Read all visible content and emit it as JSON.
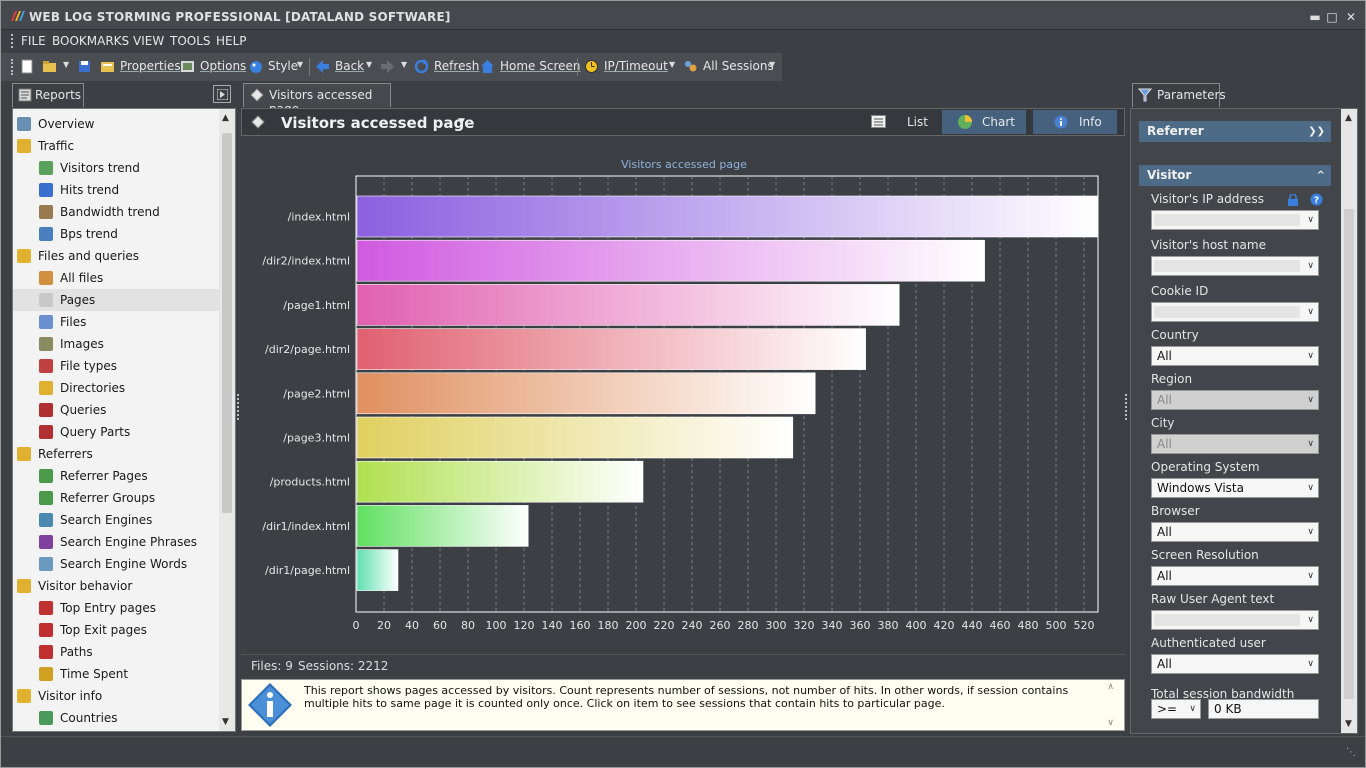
{
  "window": {
    "title": "WEB LOG STORMING PROFESSIONAL [DATALAND SOFTWARE]"
  },
  "menu": [
    "FILE",
    "BOOKMARKS",
    "VIEW",
    "TOOLS",
    "HELP"
  ],
  "toolbar": {
    "properties": "Properties",
    "options": "Options",
    "style": "Style",
    "back": "Back",
    "refresh": "Refresh",
    "home": "Home Screen",
    "ip_timeout": "IP/Timeout",
    "sessions": "All Sessions"
  },
  "left": {
    "tab": "Reports",
    "items": [
      {
        "label": "Overview",
        "level": 0,
        "icon": "overview-icon",
        "color": "#6a8fb5"
      },
      {
        "label": "Traffic",
        "level": 0,
        "icon": "folder-icon",
        "color": "#e0b030"
      },
      {
        "label": "Visitors trend",
        "level": 1,
        "icon": "visitors-icon",
        "color": "#5aa05a"
      },
      {
        "label": "Hits trend",
        "level": 1,
        "icon": "hits-icon",
        "color": "#3a6fd0"
      },
      {
        "label": "Bandwidth trend",
        "level": 1,
        "icon": "bandwidth-icon",
        "color": "#9a7a50"
      },
      {
        "label": "Bps trend",
        "level": 1,
        "icon": "bps-icon",
        "color": "#4a80c0"
      },
      {
        "label": "Files and queries",
        "level": 0,
        "icon": "folder-icon",
        "color": "#e0b030"
      },
      {
        "label": "All files",
        "level": 1,
        "icon": "all-files-icon",
        "color": "#d09040"
      },
      {
        "label": "Pages",
        "level": 1,
        "icon": "pages-icon",
        "color": "#c8c8c8",
        "selected": true
      },
      {
        "label": "Files",
        "level": 1,
        "icon": "files-icon",
        "color": "#6a90d0"
      },
      {
        "label": "Images",
        "level": 1,
        "icon": "images-icon",
        "color": "#8a8a60"
      },
      {
        "label": "File types",
        "level": 1,
        "icon": "file-types-icon",
        "color": "#c04040"
      },
      {
        "label": "Directories",
        "level": 1,
        "icon": "directories-icon",
        "color": "#e0b030"
      },
      {
        "label": "Queries",
        "level": 1,
        "icon": "queries-icon",
        "color": "#b03030"
      },
      {
        "label": "Query Parts",
        "level": 1,
        "icon": "query-parts-icon",
        "color": "#b03030"
      },
      {
        "label": "Referrers",
        "level": 0,
        "icon": "folder-icon",
        "color": "#e0b030"
      },
      {
        "label": "Referrer Pages",
        "level": 1,
        "icon": "referrer-pages-icon",
        "color": "#4a9a4a"
      },
      {
        "label": "Referrer Groups",
        "level": 1,
        "icon": "referrer-groups-icon",
        "color": "#4a9a4a"
      },
      {
        "label": "Search Engines",
        "level": 1,
        "icon": "search-engines-icon",
        "color": "#4a8ab0"
      },
      {
        "label": "Search Engine Phrases",
        "level": 1,
        "icon": "search-phrases-icon",
        "color": "#8040a0"
      },
      {
        "label": "Search Engine Words",
        "level": 1,
        "icon": "search-words-icon",
        "color": "#6a9ac0"
      },
      {
        "label": "Visitor behavior",
        "level": 0,
        "icon": "folder-icon",
        "color": "#e0b030"
      },
      {
        "label": "Top Entry pages",
        "level": 1,
        "icon": "entry-pages-icon",
        "color": "#c03030"
      },
      {
        "label": "Top Exit pages",
        "level": 1,
        "icon": "exit-pages-icon",
        "color": "#c03030"
      },
      {
        "label": "Paths",
        "level": 1,
        "icon": "paths-icon",
        "color": "#c03030"
      },
      {
        "label": "Time Spent",
        "level": 1,
        "icon": "clock-icon",
        "color": "#d0a020"
      },
      {
        "label": "Visitor info",
        "level": 0,
        "icon": "folder-icon",
        "color": "#e0b030"
      },
      {
        "label": "Countries",
        "level": 1,
        "icon": "globe-icon",
        "color": "#4a9a5a"
      }
    ]
  },
  "center": {
    "tab": "Visitors accessed page",
    "report_title": "Visitors accessed page",
    "views": {
      "list": "List",
      "chart": "Chart",
      "info": "Info"
    },
    "status_files": "Files: 9",
    "status_sessions": "Sessions: 2212",
    "info_text": "This report shows pages accessed by visitors. Count represents number of sessions, not number of hits. In other words, if session contains multiple hits to same page it is counted only once. Click on item to see sessions that contain hits to particular page."
  },
  "chart_data": {
    "type": "bar",
    "orientation": "horizontal",
    "title": "Visitors accessed page",
    "categories": [
      "/index.html",
      "/dir2/index.html",
      "/page1.html",
      "/dir2/page.html",
      "/page2.html",
      "/page3.html",
      "/products.html",
      "/dir1/index.html",
      "/dir1/page.html"
    ],
    "values": [
      530,
      449,
      388,
      364,
      328,
      312,
      205,
      123,
      30
    ],
    "xlim": [
      0,
      530
    ],
    "ticks": [
      0,
      20,
      40,
      60,
      80,
      100,
      120,
      140,
      160,
      180,
      200,
      220,
      240,
      260,
      280,
      300,
      320,
      340,
      360,
      380,
      400,
      420,
      440,
      460,
      480,
      500,
      520
    ],
    "grid": true,
    "colors": [
      "#8b5fe0",
      "#d05ae0",
      "#e060b0",
      "#e06070",
      "#e09060",
      "#e0d060",
      "#b0e050",
      "#60e060",
      "#60e0b0"
    ]
  },
  "right": {
    "tab": "Parameters",
    "groups": {
      "referrer": "Referrer",
      "visitor": "Visitor"
    },
    "params": [
      {
        "label": "Visitor's IP address",
        "value": "",
        "type": "combo"
      },
      {
        "label": "Visitor's host name",
        "value": "",
        "type": "combo"
      },
      {
        "label": "Cookie ID",
        "value": "",
        "type": "combo"
      },
      {
        "label": "Country",
        "value": "All",
        "type": "select"
      },
      {
        "label": "Region",
        "value": "All",
        "type": "disabled"
      },
      {
        "label": "City",
        "value": "All",
        "type": "disabled"
      },
      {
        "label": "Operating System",
        "value": "Windows Vista",
        "type": "select"
      },
      {
        "label": "Browser",
        "value": "All",
        "type": "select"
      },
      {
        "label": "Screen Resolution",
        "value": "All",
        "type": "select"
      },
      {
        "label": "Raw User Agent text",
        "value": "",
        "type": "combo"
      },
      {
        "label": "Authenticated user",
        "value": "All",
        "type": "select"
      }
    ],
    "bandwidth": {
      "label": "Total session bandwidth",
      "operator": ">=",
      "value": "0 KB"
    }
  }
}
